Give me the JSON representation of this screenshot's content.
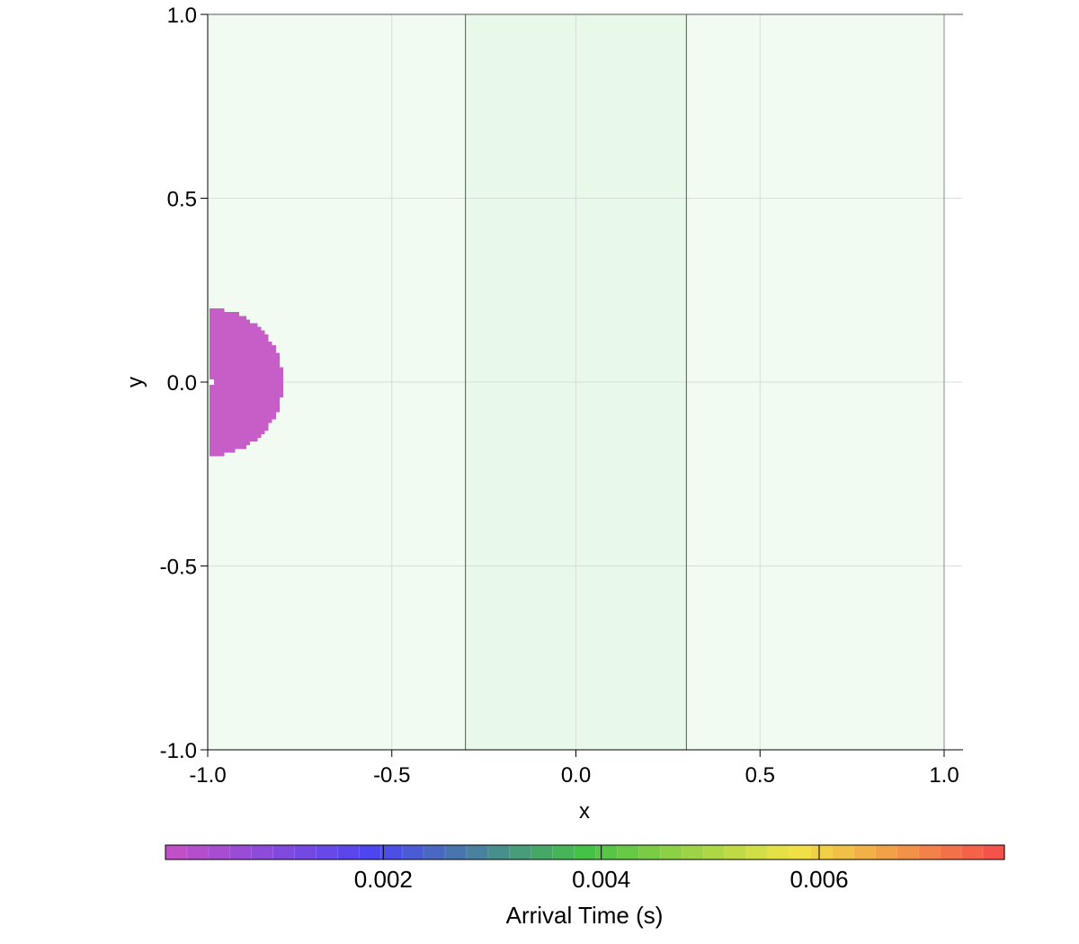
{
  "chart_data": {
    "type": "heatmap",
    "title": "",
    "xlabel": "x",
    "ylabel": "y",
    "xlim": [
      -1.0,
      1.0
    ],
    "ylim": [
      -1.0,
      1.0
    ],
    "x_ticks": [
      -1.0,
      -0.5,
      0.0,
      0.5,
      1.0
    ],
    "y_ticks": [
      -1.0,
      -0.5,
      0.0,
      0.5,
      1.0
    ],
    "x_tick_labels": [
      "-1.0",
      "-0.5",
      "0.0",
      "0.5",
      "1.0"
    ],
    "y_tick_labels": [
      "-1.0",
      "-0.5",
      "0.0",
      "0.5",
      "1.0"
    ],
    "grid": true,
    "background_region": {
      "x": [
        -1.0,
        1.0
      ],
      "y": [
        -1.0,
        1.0
      ],
      "color": "#f2fbf2"
    },
    "inner_region": {
      "x": [
        -0.3,
        0.3
      ],
      "y": [
        -1.0,
        1.0
      ],
      "color": "#e9f9e9",
      "border_color": "#555555"
    },
    "arrival_region": {
      "shape": "half-disc",
      "center": [
        -1.0,
        0.0
      ],
      "radius": 0.2,
      "value": 0.0,
      "color": "#c75ec7"
    },
    "colorbar": {
      "label": "Arrival Time (s)",
      "range": [
        0.0,
        0.0077
      ],
      "ticks": [
        0.002,
        0.004,
        0.006
      ],
      "tick_labels": [
        "0.002",
        "0.004",
        "0.006"
      ],
      "orientation": "horizontal",
      "placement": "bottom",
      "colors": [
        "#c650c6",
        "#4b45f2",
        "#45c245",
        "#f0e446",
        "#f44a4a"
      ]
    }
  }
}
